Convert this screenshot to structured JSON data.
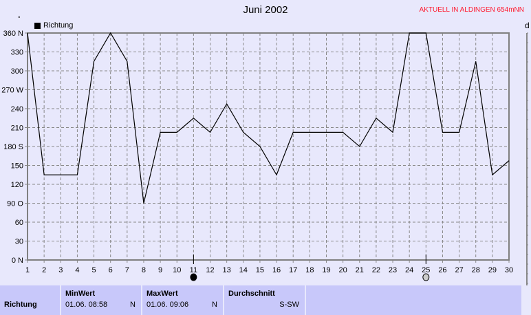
{
  "chart_data": {
    "type": "line",
    "title": "Juni 2002",
    "subtitle": "AKTUELL IN ALDINGEN 654mNN",
    "ylabel": "°",
    "right_axis_label": "d",
    "legend": [
      {
        "name": "Richtung",
        "color": "#000000"
      }
    ],
    "legend_placement": "top-left",
    "grid": true,
    "xlim": [
      1,
      30
    ],
    "ylim": [
      0,
      360
    ],
    "x_ticks": [
      1,
      2,
      3,
      4,
      5,
      6,
      7,
      8,
      9,
      10,
      11,
      12,
      13,
      14,
      15,
      16,
      17,
      18,
      19,
      20,
      21,
      22,
      23,
      24,
      25,
      26,
      27,
      28,
      29,
      30
    ],
    "y_ticks": [
      "0  N",
      "30",
      "60",
      "90  O",
      "120",
      "150",
      "180 S",
      "210",
      "240",
      "270 W",
      "300",
      "330",
      "360 N"
    ],
    "series": [
      {
        "name": "Richtung",
        "x": [
          1,
          2,
          3,
          4,
          5,
          6,
          7,
          8,
          9,
          10,
          11,
          12,
          13,
          14,
          15,
          16,
          17,
          18,
          19,
          20,
          21,
          22,
          23,
          24,
          25,
          26,
          27,
          28,
          29,
          30
        ],
        "values": [
          360,
          135,
          135,
          135,
          315,
          360,
          315,
          90,
          202.5,
          202.5,
          225,
          202.5,
          247.5,
          202.5,
          180,
          135,
          202.5,
          202.5,
          202.5,
          202.5,
          180,
          225,
          202.5,
          360,
          360,
          202.5,
          202.5,
          315,
          135,
          157.5
        ]
      }
    ],
    "markers": [
      {
        "day": 11,
        "icon": "new-moon-icon"
      },
      {
        "day": 25,
        "icon": "full-moon-icon"
      }
    ]
  },
  "panel": {
    "row_label": "Richtung",
    "min": {
      "header": "MinWert",
      "date": "01.06.  08:58",
      "value": "N"
    },
    "max": {
      "header": "MaxWert",
      "date": "01.06.  09:06",
      "value": "N"
    },
    "avg": {
      "header": "Durchschnitt",
      "value": "S-SW"
    }
  }
}
